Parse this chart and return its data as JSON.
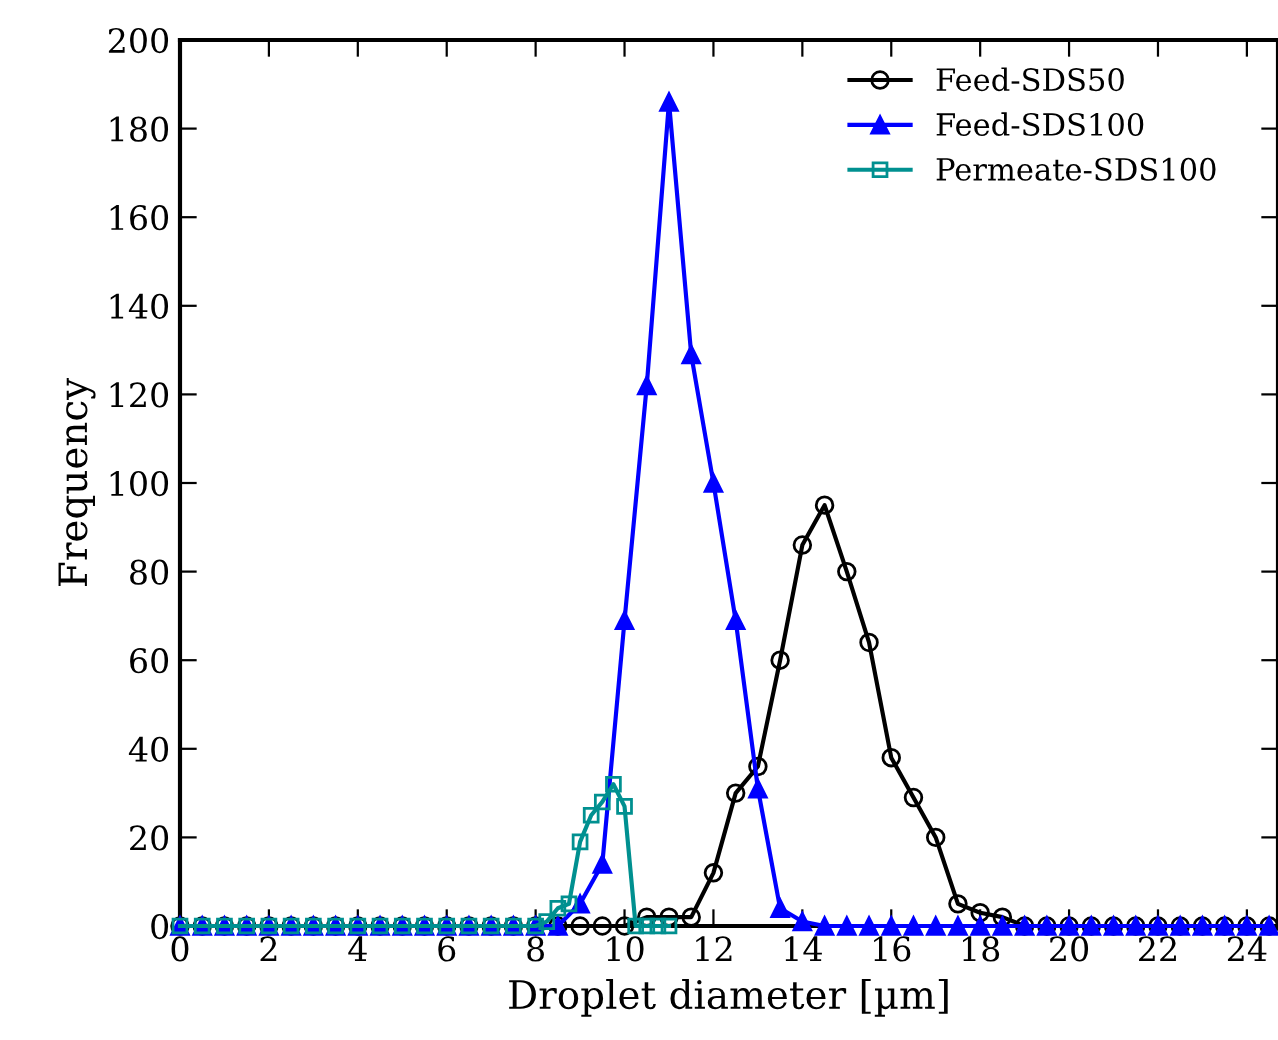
{
  "chart_data": {
    "type": "line",
    "xlabel": "Droplet diameter [µm]",
    "ylabel": "Frequency",
    "xlim": [
      0,
      24.7
    ],
    "xticks": [
      0,
      2,
      4,
      6,
      8,
      10,
      12,
      14,
      16,
      18,
      20,
      22,
      24
    ],
    "ylim": [
      0,
      200
    ],
    "yticks": [
      0,
      20,
      40,
      60,
      80,
      100,
      120,
      140,
      160,
      180,
      200
    ],
    "grid": false,
    "legend": "top right",
    "series": [
      {
        "name": "Feed-SDS50",
        "color": "#000000",
        "marker": "circle",
        "x": [
          0,
          0.5,
          1,
          1.5,
          2,
          2.5,
          3,
          3.5,
          4,
          4.5,
          5,
          5.5,
          6,
          6.5,
          7,
          7.5,
          8,
          8.5,
          9,
          9.5,
          10,
          10.5,
          11,
          11.5,
          12,
          12.5,
          13,
          13.5,
          14,
          14.5,
          15,
          15.5,
          16,
          16.5,
          17,
          17.5,
          18,
          18.5,
          19,
          19.5,
          20,
          20.5,
          21,
          21.5,
          22,
          22.5,
          23,
          23.5,
          24,
          24.5
        ],
        "values": [
          0,
          0,
          0,
          0,
          0,
          0,
          0,
          0,
          0,
          0,
          0,
          0,
          0,
          0,
          0,
          0,
          0,
          0,
          0,
          0,
          0,
          2,
          2,
          2,
          12,
          30,
          36,
          60,
          86,
          95,
          80,
          64,
          38,
          29,
          20,
          5,
          3,
          2,
          0,
          0,
          0,
          0,
          0,
          0,
          0,
          0,
          0,
          0,
          0,
          0
        ]
      },
      {
        "name": "Feed-SDS100",
        "color": "#0000ff",
        "marker": "triangle",
        "x": [
          0,
          0.5,
          1,
          1.5,
          2,
          2.5,
          3,
          3.5,
          4,
          4.5,
          5,
          5.5,
          6,
          6.5,
          7,
          7.5,
          8,
          8.5,
          9,
          9.5,
          10,
          10.5,
          11,
          11.5,
          12,
          12.5,
          13,
          13.5,
          14,
          14.5,
          15,
          15.5,
          16,
          16.5,
          17,
          17.5,
          18,
          18.5,
          19,
          19.5,
          20,
          20.5,
          21,
          21.5,
          22,
          22.5,
          23,
          23.5,
          24,
          24.5
        ],
        "values": [
          0,
          0,
          0,
          0,
          0,
          0,
          0,
          0,
          0,
          0,
          0,
          0,
          0,
          0,
          0,
          0,
          0,
          0,
          5,
          14,
          69,
          122,
          186,
          129,
          100,
          69,
          31,
          4,
          1,
          0,
          0,
          0,
          0,
          0,
          0,
          0,
          0,
          0,
          0,
          0,
          0,
          0,
          0,
          0,
          0,
          0,
          0,
          0,
          0,
          0
        ]
      },
      {
        "name": "Permeate-SDS100",
        "color": "#009090",
        "marker": "square",
        "x": [
          0,
          0.5,
          1,
          1.5,
          2,
          2.5,
          3,
          3.5,
          4,
          4.5,
          5,
          5.5,
          6,
          6.5,
          7,
          7.5,
          8,
          8.25,
          8.5,
          8.75,
          9,
          9.25,
          9.5,
          9.75,
          10,
          10.25,
          10.5,
          10.75,
          11
        ],
        "values": [
          0,
          0,
          0,
          0,
          0,
          0,
          0,
          0,
          0,
          0,
          0,
          0,
          0,
          0,
          0,
          0,
          0,
          1,
          4,
          5,
          19,
          25,
          28,
          32,
          27,
          0,
          0,
          0,
          0
        ]
      }
    ]
  }
}
